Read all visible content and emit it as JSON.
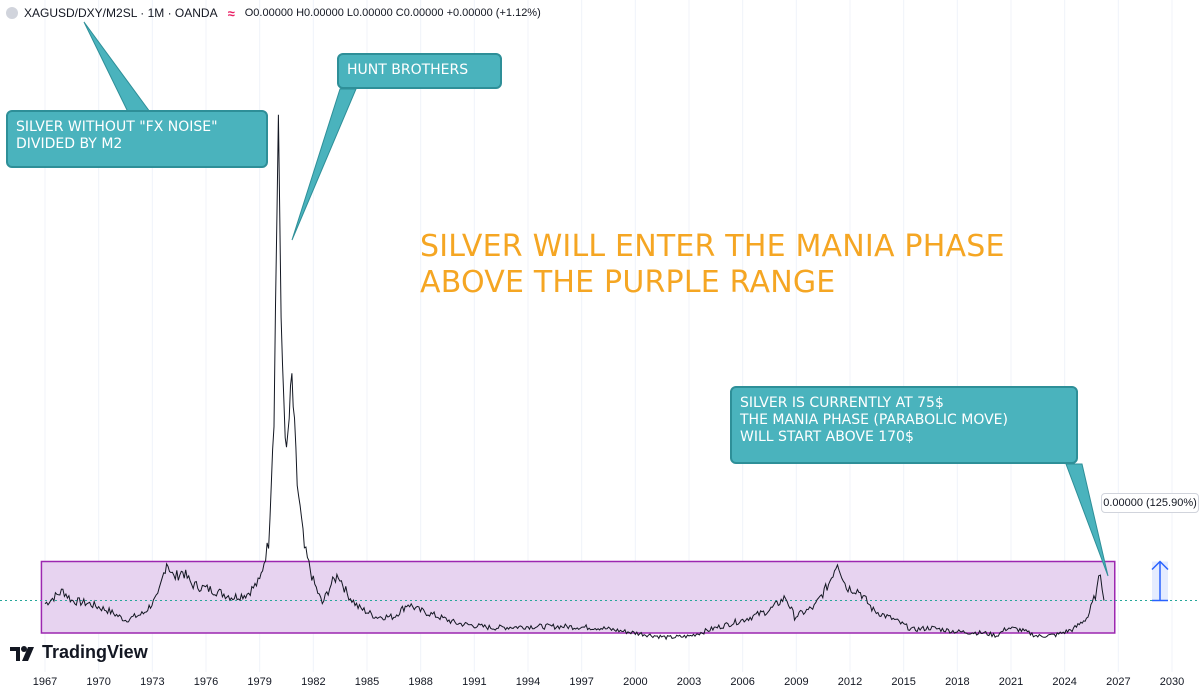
{
  "header": {
    "symbol": "XAGUSD/DXY/M2SL · 1M · OANDA",
    "ohlc": "O0.00000 H0.00000 L0.00000 C0.00000 +0.00000 (+1.12%)",
    "icon": "wave-icon"
  },
  "annotations": {
    "fx_noise": "SILVER WITHOUT \"FX NOISE\"\nDIVIDED BY M2",
    "hunt": "HUNT BROTHERS",
    "current": "SILVER IS CURRENTLY AT 75$\nTHE MANIA PHASE (PARABOLIC MOVE)\nWILL START ABOVE 170$",
    "headline": "SILVER WILL ENTER THE MANIA PHASE\nABOVE THE PURPLE RANGE",
    "price_tag": "0.00000 (125.90%)"
  },
  "brand": {
    "name": "TradingView",
    "icon": "tradingview-logo-icon"
  },
  "colors": {
    "callout_bg": "#4ab3bd",
    "callout_border": "#2e8f98",
    "headline": "#f5a623",
    "range_fill": "#e7d3f0",
    "range_border": "#9c27b0",
    "line": "#131722",
    "measure": "#2962ff"
  },
  "chart_data": {
    "type": "line",
    "xlabel": "",
    "ylabel": "",
    "x_ticks": [
      "1967",
      "1970",
      "1973",
      "1976",
      "1979",
      "1982",
      "1985",
      "1988",
      "1991",
      "1994",
      "1997",
      "2000",
      "2003",
      "2006",
      "2009",
      "2012",
      "2015",
      "2018",
      "2021",
      "2024",
      "2027",
      "2030"
    ],
    "xlim": [
      1967,
      2030
    ],
    "ylim": [
      0,
      100
    ],
    "grid": "vertical",
    "range_box": {
      "x": [
        1966.8,
        2026.8
      ],
      "y": [
        17,
        6
      ]
    },
    "current_level": 11.0,
    "series": [
      {
        "values": [
          [
            1967.0,
            10.5
          ],
          [
            1968.0,
            12.5
          ],
          [
            1968.5,
            11.0
          ],
          [
            1969.5,
            10.5
          ],
          [
            1970.5,
            9.5
          ],
          [
            1971.5,
            8.0
          ],
          [
            1972.5,
            9.0
          ],
          [
            1973.3,
            11.5
          ],
          [
            1973.8,
            17.0
          ],
          [
            1974.2,
            14.5
          ],
          [
            1974.7,
            15.5
          ],
          [
            1975.2,
            13.5
          ],
          [
            1975.8,
            13.0
          ],
          [
            1976.5,
            12.5
          ],
          [
            1977.5,
            11.5
          ],
          [
            1978.3,
            12.0
          ],
          [
            1979.0,
            14.0
          ],
          [
            1979.5,
            20.0
          ],
          [
            1979.8,
            40.0
          ],
          [
            1980.05,
            87.0
          ],
          [
            1980.2,
            52.0
          ],
          [
            1980.5,
            33.0
          ],
          [
            1980.8,
            45.0
          ],
          [
            1981.1,
            29.0
          ],
          [
            1981.5,
            19.0
          ],
          [
            1982.0,
            14.0
          ],
          [
            1982.5,
            10.5
          ],
          [
            1983.0,
            13.5
          ],
          [
            1983.4,
            15.0
          ],
          [
            1983.9,
            12.0
          ],
          [
            1984.5,
            10.0
          ],
          [
            1985.5,
            8.5
          ],
          [
            1986.5,
            8.5
          ],
          [
            1987.3,
            10.5
          ],
          [
            1987.9,
            9.5
          ],
          [
            1988.5,
            9.0
          ],
          [
            1990.0,
            7.5
          ],
          [
            1992.0,
            6.8
          ],
          [
            1994.0,
            7.0
          ],
          [
            1996.0,
            7.0
          ],
          [
            1998.0,
            6.8
          ],
          [
            2000.0,
            6.0
          ],
          [
            2001.8,
            5.3
          ],
          [
            2003.0,
            5.5
          ],
          [
            2004.5,
            6.8
          ],
          [
            2006.0,
            8.0
          ],
          [
            2007.5,
            9.5
          ],
          [
            2008.4,
            11.5
          ],
          [
            2008.9,
            8.5
          ],
          [
            2010.0,
            10.0
          ],
          [
            2010.8,
            13.5
          ],
          [
            2011.3,
            17.0
          ],
          [
            2011.8,
            13.0
          ],
          [
            2012.5,
            12.5
          ],
          [
            2013.3,
            9.5
          ],
          [
            2014.5,
            8.0
          ],
          [
            2015.5,
            6.5
          ],
          [
            2016.5,
            6.8
          ],
          [
            2018.0,
            6.2
          ],
          [
            2019.5,
            6.0
          ],
          [
            2020.2,
            5.6
          ],
          [
            2020.8,
            6.8
          ],
          [
            2021.5,
            6.5
          ],
          [
            2022.5,
            5.5
          ],
          [
            2023.5,
            5.7
          ],
          [
            2024.5,
            6.6
          ],
          [
            2025.3,
            8.5
          ],
          [
            2025.8,
            12.5
          ],
          [
            2026.0,
            15.5
          ],
          [
            2026.2,
            11.0
          ]
        ]
      }
    ]
  }
}
